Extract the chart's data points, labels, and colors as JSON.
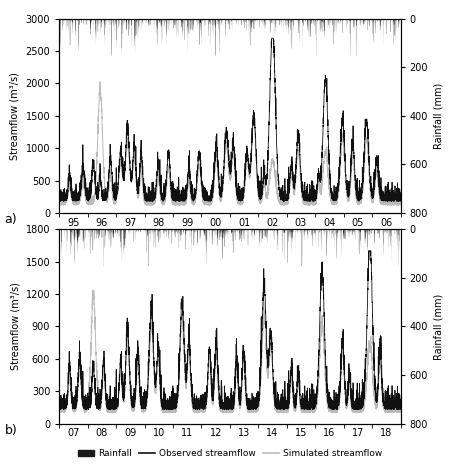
{
  "panel_a": {
    "x_tick_labels": [
      "95",
      "96",
      "97",
      "98",
      "99",
      "00",
      "01",
      "02",
      "03",
      "04",
      "05",
      "06"
    ],
    "streamflow_ylim": [
      0,
      3000
    ],
    "streamflow_yticks": [
      0,
      500,
      1000,
      1500,
      2000,
      2500,
      3000
    ],
    "rainfall_ylim": [
      0,
      800
    ],
    "rainfall_yticks": [
      0,
      200,
      400,
      600,
      800
    ],
    "rainfall_yticklabels": [
      "0",
      "200",
      "400",
      "600",
      "800"
    ],
    "ylabel_left": "Streamflow (m³/s)",
    "ylabel_right": "Rainfall (mm)",
    "label": "a)"
  },
  "panel_b": {
    "x_tick_labels": [
      "07",
      "08",
      "09",
      "10",
      "11",
      "12",
      "13",
      "14",
      "15",
      "16",
      "17",
      "18"
    ],
    "streamflow_ylim": [
      0,
      1800
    ],
    "streamflow_yticks": [
      0,
      300,
      600,
      900,
      1200,
      1500,
      1800
    ],
    "rainfall_ylim": [
      0,
      800
    ],
    "rainfall_yticks": [
      0,
      200,
      400,
      600,
      800
    ],
    "rainfall_yticklabels": [
      "0",
      "200",
      "400",
      "600",
      "800"
    ],
    "ylabel_left": "Streamflow (m³/s)",
    "ylabel_right": "Rainfall (mm)",
    "label": "b)"
  },
  "legend_items": [
    "Rainfall",
    "Observed streamflow",
    "Simulated streamflow"
  ],
  "colors": {
    "rainfall": "#1a1a1a",
    "observed": "#111111",
    "simulated": "#bbbbbb"
  },
  "n_years": 12,
  "days_per_year": 365
}
